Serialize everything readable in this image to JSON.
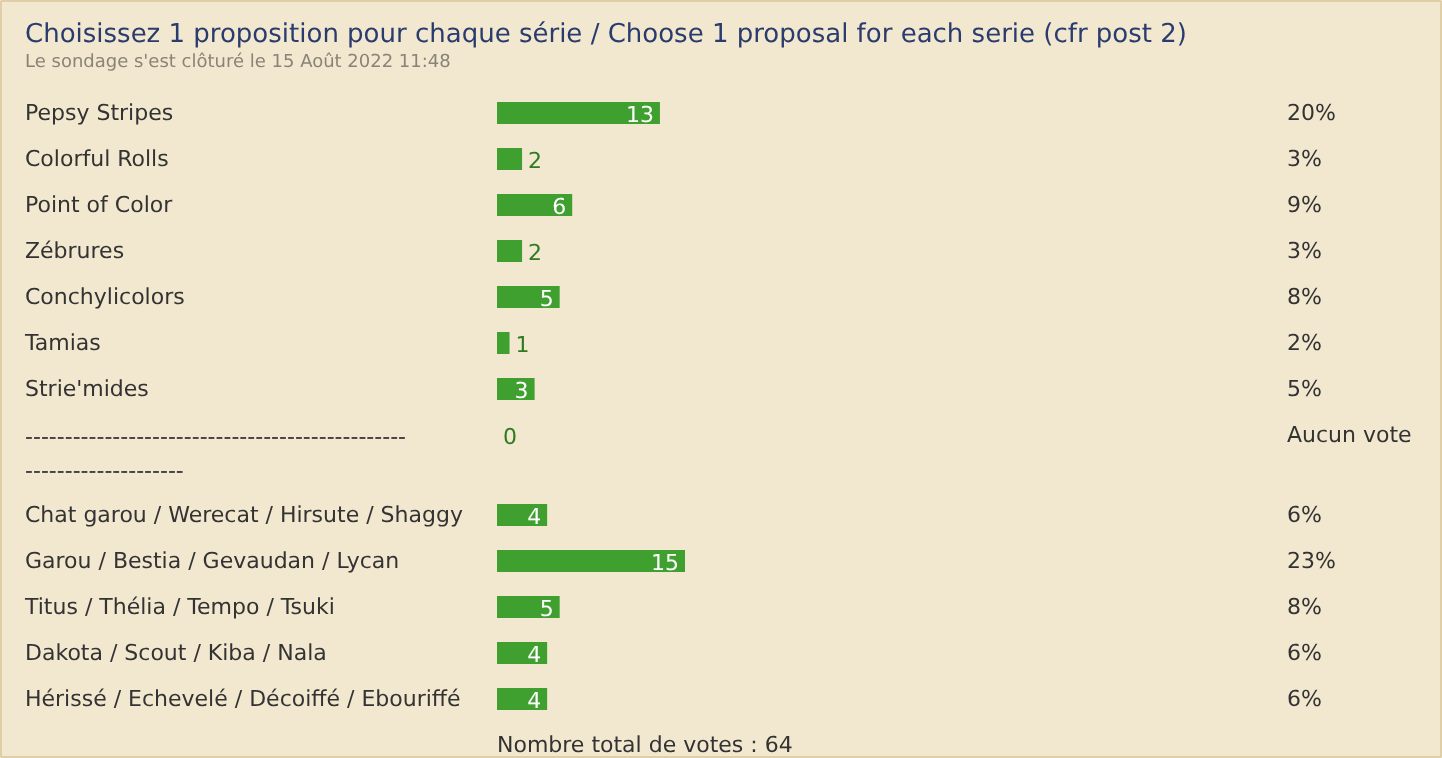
{
  "chart_data": {
    "type": "bar",
    "orientation": "horizontal",
    "title": "Choisissez 1 proposition pour chaque série / Choose 1 proposal for each serie (cfr post 2)",
    "subtitle": "Le sondage s'est clôturé le 15 Août 2022 11:48",
    "categories": [
      "Pepsy Stripes",
      "Colorful Rolls",
      "Point of Color",
      "Zébrures",
      "Conchylicolors",
      "Tamias",
      "Strie'mides",
      "--------------------------------------------------------------------",
      "Chat garou / Werecat / Hirsute / Shaggy",
      "Garou / Bestia / Gevaudan / Lycan",
      "Titus / Thélia / Tempo / Tsuki",
      "Dakota / Scout / Kiba / Nala",
      "Hérissé / Echevelé / Décoiffé / Ebouriffé"
    ],
    "values": [
      13,
      2,
      6,
      2,
      5,
      1,
      3,
      0,
      4,
      15,
      5,
      4,
      4
    ],
    "color": "#3f9f2f",
    "data_labels": true,
    "annotations": [
      "20%",
      "3%",
      "9%",
      "3%",
      "8%",
      "2%",
      "5%",
      "Aucun vote",
      "6%",
      "23%",
      "8%",
      "6%",
      "6%",
      "Nombre total de votes : 64"
    ]
  }
}
